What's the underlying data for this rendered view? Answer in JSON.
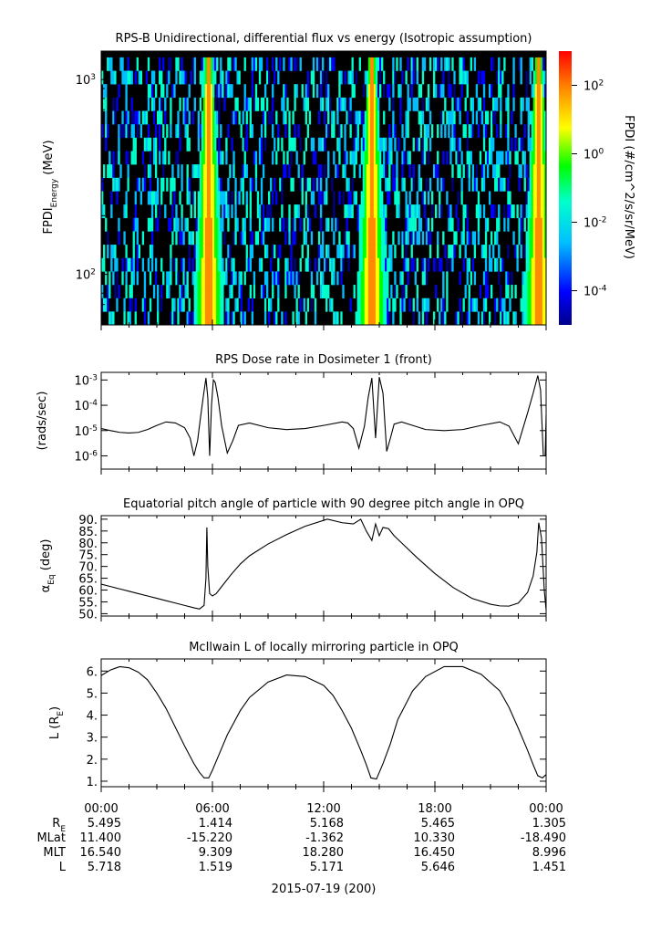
{
  "panels": {
    "spectrogram": {
      "title": "RPS-B  Unidirectional, differential flux vs energy (Isotropic assumption)",
      "ylabel_main": "FPDI",
      "ylabel_sub": "Energy",
      "ylabel_unit": " (MeV)",
      "ytick_base": "10",
      "colorbar_label": "FPDI (#/cm^2/s/sr/MeV)",
      "colorbar_base": "10"
    },
    "dose": {
      "title": "RPS  Dose rate in Dosimeter 1 (front)",
      "ylabel": "(rads/sec)",
      "ytick_base": "10"
    },
    "pitch": {
      "title": "Equatorial pitch angle of particle with 90 degree pitch angle in OPQ",
      "ylabel_main": "α",
      "ylabel_sub": "Eq",
      "ylabel_unit": " (deg)"
    },
    "lshell": {
      "title": "McIlwain L of locally mirroring particle in OPQ",
      "ylabel_main": "L (R",
      "ylabel_sub": "E",
      "ylabel_end": ")"
    }
  },
  "footer": {
    "row_labels": [
      {
        "main": "R",
        "sub": "E"
      },
      {
        "main": "MLat",
        "sub": ""
      },
      {
        "main": "MLT",
        "sub": ""
      },
      {
        "main": "L",
        "sub": ""
      }
    ],
    "time_labels": [
      "00:00",
      "06:00",
      "12:00",
      "18:00",
      "00:00"
    ],
    "rows": [
      [
        "5.495",
        "1.414",
        "5.168",
        "5.465",
        "1.305"
      ],
      [
        "11.400",
        "-15.220",
        "-1.362",
        "10.330",
        "-18.490"
      ],
      [
        "16.540",
        "9.309",
        "18.280",
        "16.450",
        "8.996"
      ],
      [
        "5.718",
        "1.519",
        "5.171",
        "5.646",
        "1.451"
      ]
    ],
    "date": "2015-07-19 (200)"
  },
  "chart_data": [
    {
      "type": "heatmap",
      "title": "RPS-B  Unidirectional, differential flux vs energy (Isotropic assumption)",
      "xlabel": "",
      "ylabel": "FPDI Energy (MeV)",
      "x_range_hours": [
        0,
        24
      ],
      "ylim": [
        55,
        1400
      ],
      "yscale": "log",
      "yticks": [
        {
          "exp": "2",
          "value": 100
        },
        {
          "exp": "3",
          "value": 1000
        }
      ],
      "colorbar": {
        "label": "FPDI (#/cm^2/s/sr/MeV)",
        "scale": "log",
        "range": [
          1e-05,
          1000
        ],
        "ticks": [
          {
            "exp": "2",
            "value": 100
          },
          {
            "exp": "0",
            "value": 1
          },
          {
            "exp": "-2",
            "value": 0.01
          },
          {
            "exp": "-4",
            "value": 0.0001
          }
        ],
        "palette": [
          "#00008b",
          "#0000ff",
          "#00bfff",
          "#00ffcc",
          "#00ff00",
          "#ffff00",
          "#ff8c00",
          "#ff0000"
        ]
      },
      "energy_channels": 20,
      "radiation_belt_peaks_hours": [
        5.8,
        14.6,
        23.6
      ],
      "background_color": "#000000"
    },
    {
      "type": "line",
      "title": "RPS  Dose rate in Dosimeter 1 (front)",
      "xlabel": "",
      "ylabel": "(rads/sec)",
      "yscale": "log",
      "ylim": [
        3e-07,
        0.002
      ],
      "yticks": [
        {
          "exp": "-3",
          "value": 0.001
        },
        {
          "exp": "-4",
          "value": 0.0001
        },
        {
          "exp": "-5",
          "value": 1e-05
        },
        {
          "exp": "-6",
          "value": 1e-06
        }
      ],
      "series": [
        {
          "x": [
            0,
            0.5,
            1,
            1.5,
            2,
            2.5,
            3,
            3.5,
            4,
            4.5,
            4.8,
            5.0,
            5.2,
            5.35,
            5.5,
            5.65,
            5.75,
            5.85,
            5.95,
            6.05,
            6.15,
            6.3,
            6.5,
            6.8,
            7.1,
            7.4,
            8,
            9,
            10,
            11,
            12,
            13,
            13.3,
            13.6,
            13.9,
            14.2,
            14.4,
            14.6,
            14.8,
            15.0,
            15.2,
            15.4,
            15.6,
            15.8,
            16.2,
            16.8,
            17.5,
            18.5,
            19.5,
            20.5,
            21.5,
            22.0,
            22.5,
            23.0,
            23.3,
            23.55,
            23.7,
            23.85,
            23.95,
            24.0
          ],
          "y": [
            1.2e-05,
            1e-05,
            8.5e-06,
            8e-06,
            8.5e-06,
            1.1e-05,
            1.6e-05,
            2.2e-05,
            2e-05,
            1.3e-05,
            5e-06,
            1e-06,
            4e-06,
            3e-05,
            0.0002,
            0.0012,
            0.0002,
            1e-06,
            0.0001,
            0.001,
            0.0008,
            0.0002,
            1.5e-05,
            1.3e-06,
            4e-06,
            1.6e-05,
            2e-05,
            1.3e-05,
            1.1e-05,
            1.2e-05,
            1.6e-05,
            2.2e-05,
            2e-05,
            1.2e-05,
            2e-06,
            1.5e-05,
            0.0002,
            0.0012,
            5e-06,
            0.0013,
            0.0003,
            1.5e-06,
            5e-06,
            1.8e-05,
            2.2e-05,
            1.6e-05,
            1.1e-05,
            1e-05,
            1.1e-05,
            1.6e-05,
            2.2e-05,
            1.5e-05,
            3e-06,
            5e-05,
            0.0003,
            0.0015,
            0.0004,
            1e-06,
            1e-06,
            4e-05
          ]
        }
      ]
    },
    {
      "type": "line",
      "title": "Equatorial pitch angle of particle with 90 degree pitch angle in OPQ",
      "xlabel": "",
      "ylabel": "αEq (deg)",
      "ylim": [
        49,
        91.5
      ],
      "yticks": [
        50,
        55,
        60,
        65,
        70,
        75,
        80,
        85,
        90
      ],
      "series": [
        {
          "x": [
            0,
            0.5,
            1,
            1.5,
            2,
            2.5,
            3,
            3.5,
            4,
            4.5,
            5.0,
            5.3,
            5.55,
            5.65,
            5.7,
            5.75,
            5.85,
            6.0,
            6.2,
            6.5,
            7.0,
            7.5,
            8,
            9,
            10,
            11,
            12.2,
            13,
            13.6,
            14.0,
            14.3,
            14.6,
            14.8,
            15.0,
            15.2,
            15.5,
            15.8,
            16.2,
            17,
            18,
            19,
            20,
            21,
            21.5,
            22,
            22.5,
            23,
            23.3,
            23.5,
            23.6,
            23.75,
            23.9,
            24.0
          ],
          "y": [
            62.5,
            61.5,
            60.5,
            59.5,
            58.5,
            57.5,
            56.5,
            55.5,
            54.5,
            53.5,
            52.5,
            52.0,
            53.5,
            65,
            86.5,
            70,
            58.5,
            57.5,
            58.5,
            61.5,
            66.5,
            71,
            74.5,
            79.5,
            83.5,
            87,
            90,
            88.5,
            88,
            90,
            85,
            81,
            88,
            83,
            86.5,
            86,
            83,
            80,
            74,
            67,
            61,
            56.5,
            54,
            53.3,
            53.2,
            54.5,
            59,
            66,
            76,
            88.5,
            82,
            60,
            51.5
          ]
        }
      ]
    },
    {
      "type": "line",
      "title": "McIlwain L of locally mirroring particle in OPQ",
      "xlabel": "",
      "ylabel": "L (RE)",
      "ylim": [
        0.75,
        6.55
      ],
      "yticks": [
        1,
        2,
        3,
        4,
        5,
        6
      ],
      "series": [
        {
          "x": [
            0,
            0.5,
            1,
            1.5,
            2,
            2.5,
            3,
            3.5,
            4,
            4.5,
            5.0,
            5.3,
            5.55,
            5.8,
            6.0,
            6.3,
            6.8,
            7.5,
            8,
            9,
            10,
            11,
            12,
            12.5,
            13,
            13.5,
            14.0,
            14.3,
            14.55,
            14.85,
            15.2,
            15.6,
            16.0,
            16.8,
            17.5,
            18.5,
            19.5,
            20.5,
            21.5,
            22.0,
            22.5,
            23.0,
            23.3,
            23.55,
            23.8,
            24.0
          ],
          "y": [
            5.8,
            6.05,
            6.2,
            6.15,
            5.95,
            5.6,
            5.0,
            4.3,
            3.45,
            2.6,
            1.8,
            1.4,
            1.15,
            1.15,
            1.5,
            2.1,
            3.1,
            4.2,
            4.8,
            5.5,
            5.82,
            5.75,
            5.35,
            4.9,
            4.2,
            3.4,
            2.4,
            1.75,
            1.15,
            1.1,
            1.8,
            2.7,
            3.8,
            5.1,
            5.75,
            6.2,
            6.2,
            5.85,
            5.1,
            4.35,
            3.4,
            2.4,
            1.75,
            1.25,
            1.15,
            1.3
          ]
        }
      ]
    }
  ]
}
